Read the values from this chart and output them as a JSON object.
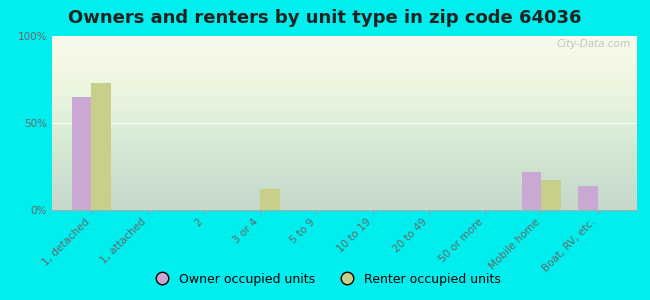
{
  "title": "Owners and renters by unit type in zip code 64036",
  "categories": [
    "1, detached",
    "1, attached",
    "2",
    "3 or 4",
    "5 to 9",
    "10 to 19",
    "20 to 49",
    "50 or more",
    "Mobile home",
    "Boat, RV, etc."
  ],
  "owner_values": [
    65,
    0,
    0,
    0,
    0,
    0,
    0,
    0,
    22,
    14
  ],
  "renter_values": [
    73,
    0,
    0,
    12,
    0,
    0,
    0,
    0,
    17,
    0
  ],
  "owner_color": "#c9a8d4",
  "renter_color": "#c8cf8a",
  "background_color": "#00eeee",
  "bar_width": 0.35,
  "ylim": [
    0,
    100
  ],
  "yticks": [
    0,
    50,
    100
  ],
  "ytick_labels": [
    "0%",
    "50%",
    "100%"
  ],
  "legend_owner": "Owner occupied units",
  "legend_renter": "Renter occupied units",
  "title_fontsize": 13,
  "tick_fontsize": 7.5,
  "legend_fontsize": 9
}
